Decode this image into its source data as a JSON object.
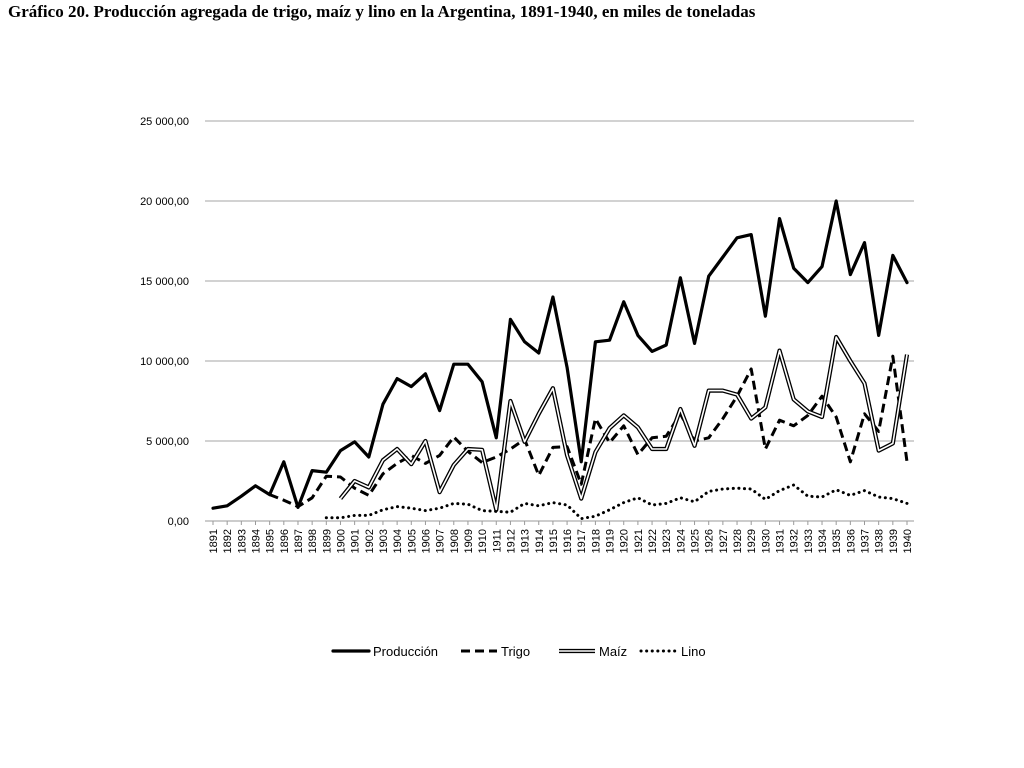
{
  "title": "Gráfico 20. Producción agregada de trigo, maíz y lino en la Argentina, 1891-1940, en miles de toneladas",
  "chart_data": {
    "type": "line",
    "title": "Gráfico 20. Producción agregada de trigo, maíz y lino en la Argentina, 1891-1940, en miles de toneladas",
    "xlabel": "",
    "ylabel": "",
    "ylim": [
      0,
      25000
    ],
    "y_ticks": [
      0,
      5000,
      10000,
      15000,
      20000,
      25000
    ],
    "y_tick_labels": [
      "0,00",
      "5 000,00",
      "10 000,00",
      "15 000,00",
      "20 000,00",
      "25 000,00"
    ],
    "grid": "horizontal",
    "legend_position": "bottom",
    "x": [
      "1891",
      "1892",
      "1893",
      "1894",
      "1895",
      "1896",
      "1897",
      "1898",
      "1899",
      "1900",
      "1901",
      "1902",
      "1903",
      "1904",
      "1905",
      "1906",
      "1907",
      "1908",
      "1909",
      "1910",
      "1911",
      "1912",
      "1913",
      "1914",
      "1915",
      "1916",
      "1917",
      "1918",
      "1919",
      "1920",
      "1921",
      "1922",
      "1923",
      "1924",
      "1925",
      "1926",
      "1927",
      "1928",
      "1929",
      "1930",
      "1931",
      "1932",
      "1933",
      "1934",
      "1935",
      "1936",
      "1937",
      "1938",
      "1939",
      "1940"
    ],
    "series": [
      {
        "name": "Producción",
        "style": "solid-thick",
        "color": "#000000",
        "values": [
          800,
          950,
          1550,
          2200,
          1650,
          3700,
          850,
          3150,
          3050,
          4400,
          4950,
          4000,
          7300,
          8900,
          8400,
          9200,
          6900,
          9800,
          9800,
          8700,
          5200,
          12600,
          11200,
          10500,
          14000,
          9600,
          3700,
          11200,
          11300,
          13700,
          11600,
          10600,
          11000,
          15200,
          11100,
          15300,
          16500,
          17700,
          17900,
          12800,
          18900,
          15800,
          14900,
          15900,
          20000,
          15400,
          17400,
          11600,
          16600,
          14900
        ]
      },
      {
        "name": "Trigo",
        "style": "dashed",
        "color": "#000000",
        "values": [
          null,
          null,
          null,
          null,
          1650,
          1300,
          900,
          1450,
          2800,
          2750,
          2050,
          1600,
          2950,
          3600,
          4100,
          3600,
          4100,
          5250,
          4350,
          3650,
          4000,
          4500,
          5100,
          2850,
          4600,
          4650,
          2300,
          6400,
          4900,
          5950,
          4150,
          5200,
          5300,
          6700,
          5000,
          5200,
          6400,
          7800,
          9500,
          4500,
          6300,
          5950,
          6600,
          7800,
          6500,
          3700,
          6700,
          5600,
          10300,
          3700
        ]
      },
      {
        "name": "Maíz",
        "style": "double",
        "color": "#000000",
        "values": [
          null,
          null,
          null,
          null,
          null,
          null,
          null,
          null,
          null,
          1400,
          2500,
          2100,
          3800,
          4500,
          3550,
          5000,
          1800,
          3500,
          4500,
          4450,
          700,
          7500,
          4950,
          6700,
          8300,
          4100,
          1400,
          4300,
          5800,
          6600,
          5850,
          4500,
          4500,
          7000,
          4700,
          8150,
          8150,
          7900,
          6400,
          7100,
          10650,
          7600,
          6850,
          6500,
          11500,
          10000,
          8600,
          4400,
          4850,
          10400
        ]
      },
      {
        "name": "Lino",
        "style": "dotted",
        "color": "#000000",
        "values": [
          null,
          null,
          null,
          null,
          null,
          null,
          null,
          null,
          200,
          200,
          350,
          350,
          700,
          900,
          800,
          650,
          800,
          1100,
          1050,
          650,
          600,
          550,
          1100,
          950,
          1150,
          1000,
          150,
          300,
          700,
          1150,
          1450,
          1000,
          1100,
          1450,
          1200,
          1850,
          2000,
          2050,
          2000,
          1350,
          1900,
          2250,
          1550,
          1500,
          1950,
          1600,
          1900,
          1500,
          1400,
          1100
        ]
      }
    ]
  }
}
